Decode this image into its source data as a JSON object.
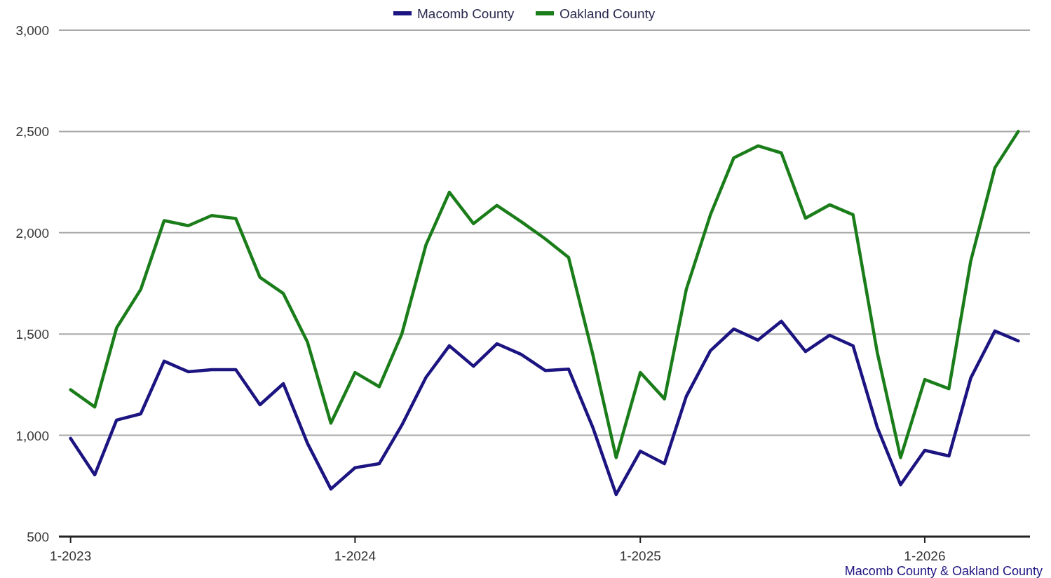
{
  "chart_data": {
    "type": "line",
    "x": [
      "2023-01",
      "2023-02",
      "2023-03",
      "2023-04",
      "2023-05",
      "2023-06",
      "2023-07",
      "2023-08",
      "2023-09",
      "2023-10",
      "2023-11",
      "2023-12",
      "2024-01",
      "2024-02",
      "2024-03",
      "2024-04",
      "2024-05",
      "2024-06",
      "2024-07",
      "2024-08",
      "2024-09",
      "2024-10",
      "2024-11",
      "2024-12",
      "2025-01",
      "2025-02",
      "2025-03",
      "2025-04",
      "2025-05",
      "2025-06",
      "2025-07",
      "2025-08",
      "2025-09",
      "2025-10",
      "2025-11",
      "2025-12",
      "2026-01",
      "2026-02",
      "2026-03",
      "2026-04",
      "2026-05"
    ],
    "series": [
      {
        "name": "Macomb County",
        "color": "#1c1480",
        "values": [
          985,
          805,
          1075,
          1106,
          1366,
          1314,
          1324,
          1324,
          1151,
          1255,
          960,
          735,
          840,
          860,
          1050,
          1286,
          1442,
          1341,
          1452,
          1400,
          1320,
          1327,
          1040,
          708,
          922,
          860,
          1192,
          1418,
          1525,
          1470,
          1563,
          1414,
          1494,
          1442,
          1040,
          756,
          926,
          898,
          1283,
          1515,
          1466
        ]
      },
      {
        "name": "Oakland County",
        "color": "#1a7d1a",
        "values": [
          1225,
          1140,
          1530,
          1720,
          2060,
          2035,
          2085,
          2070,
          1780,
          1700,
          1460,
          1060,
          1310,
          1240,
          1500,
          1940,
          2200,
          2045,
          2135,
          2055,
          1970,
          1878,
          1400,
          890,
          1310,
          1180,
          1720,
          2089,
          2370,
          2429,
          2394,
          2072,
          2138,
          2089,
          1410,
          890,
          1275,
          1230,
          1860,
          2321,
          2500
        ]
      }
    ],
    "xlim": [
      "2022-12-17",
      "2026-05-16"
    ],
    "xticks": [
      {
        "value": "2023-01",
        "label": "1-2023"
      },
      {
        "value": "2024-01",
        "label": "1-2024"
      },
      {
        "value": "2025-01",
        "label": "1-2025"
      },
      {
        "value": "2026-01",
        "label": "1-2026"
      }
    ],
    "ylim": [
      500,
      3000
    ],
    "yticks": [
      {
        "value": 500,
        "label": "500"
      },
      {
        "value": 1000,
        "label": "1,000"
      },
      {
        "value": 1500,
        "label": "1,500"
      },
      {
        "value": 2000,
        "label": "2,000"
      },
      {
        "value": 2500,
        "label": "2,500"
      },
      {
        "value": 3000,
        "label": "3,000"
      }
    ],
    "grid": "y",
    "legend": "top",
    "marker": "none",
    "line_style": "solid",
    "annotations": [
      "Macomb County & Oakland County"
    ]
  }
}
